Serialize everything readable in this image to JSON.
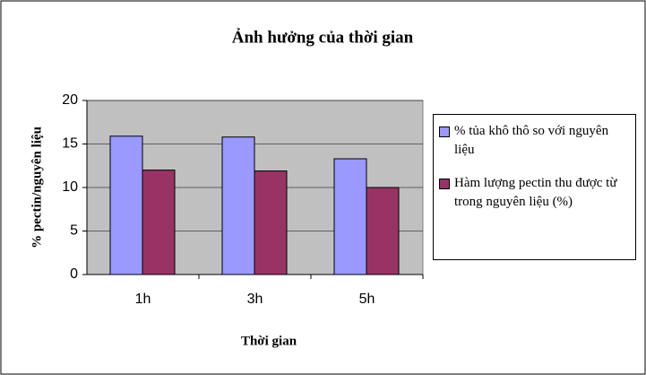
{
  "chart_data": {
    "type": "bar",
    "title": "Ảnh hưởng của thời gian",
    "x_label": "Thời gian",
    "y_label": "% pectin/nguyên liệu",
    "categories": [
      "1h",
      "3h",
      "5h"
    ],
    "series": [
      {
        "name": "% tủa khô thô so với nguyên liệu",
        "color": "#9999ff",
        "values": [
          15.9,
          15.8,
          13.3
        ]
      },
      {
        "name": "Hàm lượng pectin thu được từ trong nguyên liệu (%)",
        "color": "#993366",
        "values": [
          12,
          11.9,
          10
        ]
      }
    ],
    "ylim": [
      0,
      20
    ],
    "yticks": [
      0,
      5,
      10,
      15,
      20
    ],
    "grid": true,
    "plot_background": "#c0c0c0"
  }
}
